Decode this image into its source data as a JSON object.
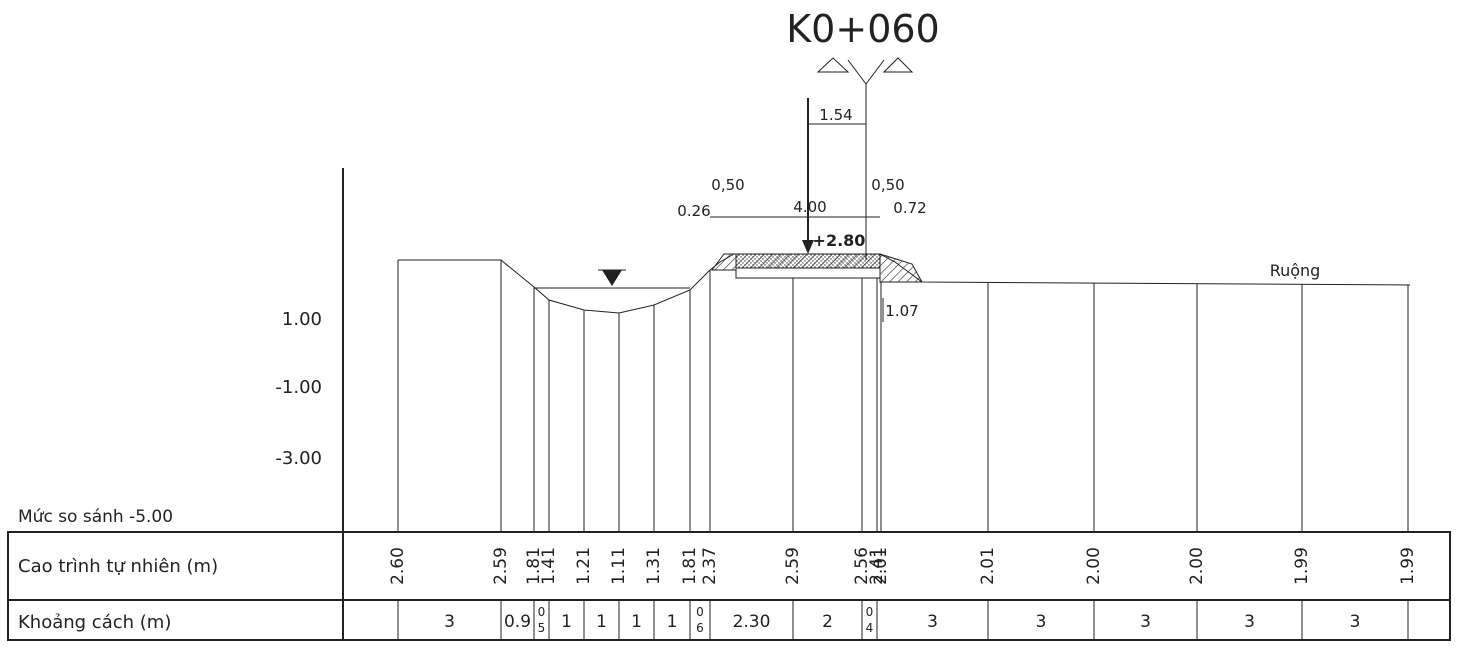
{
  "section_title": "K0+060",
  "y_scale": {
    "labels": [
      "1.00",
      "-1.00",
      "-3.00"
    ],
    "datum_label": "Mức so sánh -5.00"
  },
  "annotations": {
    "top_dim": "1.54",
    "left_026": "0.26",
    "left_050": "0,50",
    "center_width": "4.00",
    "right_050": "0,50",
    "right_072": "0.72",
    "design_level": "+2.80",
    "side_107": "1.07",
    "field_label": "Ruộng"
  },
  "table": {
    "row1_label": "Cao trình tự nhiên (m)",
    "row2_label": "Khoảng cách (m)",
    "elevations": [
      "2.60",
      "2.59",
      "1.81",
      "1.41",
      "1.21",
      "1.11",
      "1.31",
      "1.81",
      "2.37",
      "2.59",
      "2.56",
      "2.41",
      "2.01",
      "2.01",
      "2.00",
      "2.00",
      "1.99",
      "1.99"
    ],
    "distances": [
      "3",
      "0.9",
      "0\n5",
      "1",
      "1",
      "1",
      "1",
      "0\n6",
      "2.30",
      "2",
      "0\n4",
      "3",
      "3",
      "3",
      "3",
      "3"
    ]
  },
  "colors": {
    "line": "#222222",
    "background": "#ffffff"
  }
}
